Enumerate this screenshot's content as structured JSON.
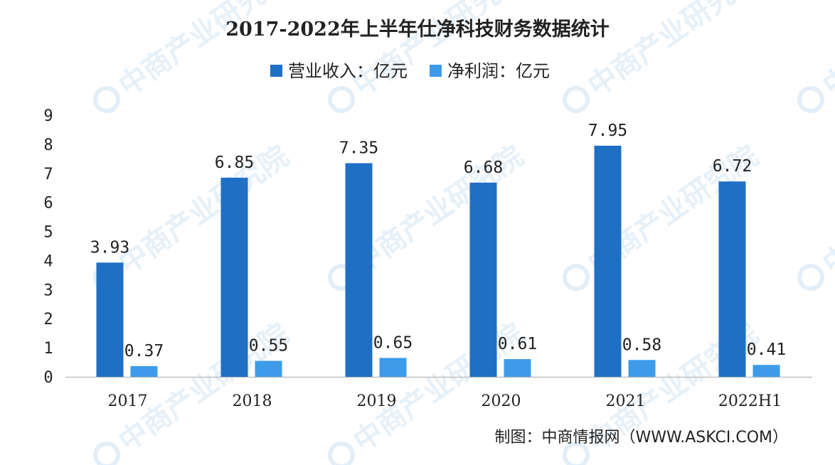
{
  "watermark": "中商产业研究院",
  "source": "制图：中商情报网（WWW.ASKCI.COM）",
  "colors": {
    "revenue": "#1f6fc5",
    "profit": "#3d9be9",
    "axis": "#bfbfbf"
  },
  "chart_data": {
    "type": "bar",
    "title": "2017-2022年上半年仕净科技财务数据统计",
    "categories": [
      "2017",
      "2018",
      "2019",
      "2020",
      "2021",
      "2022H1"
    ],
    "series": [
      {
        "name": "营业收入：亿元",
        "values": [
          3.93,
          6.85,
          7.35,
          6.68,
          7.95,
          6.72
        ],
        "labels": [
          "3.93",
          "6.85",
          "7.35",
          "6.68",
          "7.95",
          "6.72"
        ]
      },
      {
        "name": "净利润：亿元",
        "values": [
          0.37,
          0.55,
          0.65,
          0.61,
          0.58,
          0.41
        ],
        "labels": [
          "0.37",
          "0.55",
          "0.65",
          "0.61",
          "0.58",
          "0.41"
        ]
      }
    ],
    "ylim": [
      0,
      9
    ],
    "yticks": [
      "0",
      "1",
      "2",
      "3",
      "4",
      "5",
      "6",
      "7",
      "8",
      "9"
    ],
    "legend_position": "top-center",
    "grid": false
  }
}
